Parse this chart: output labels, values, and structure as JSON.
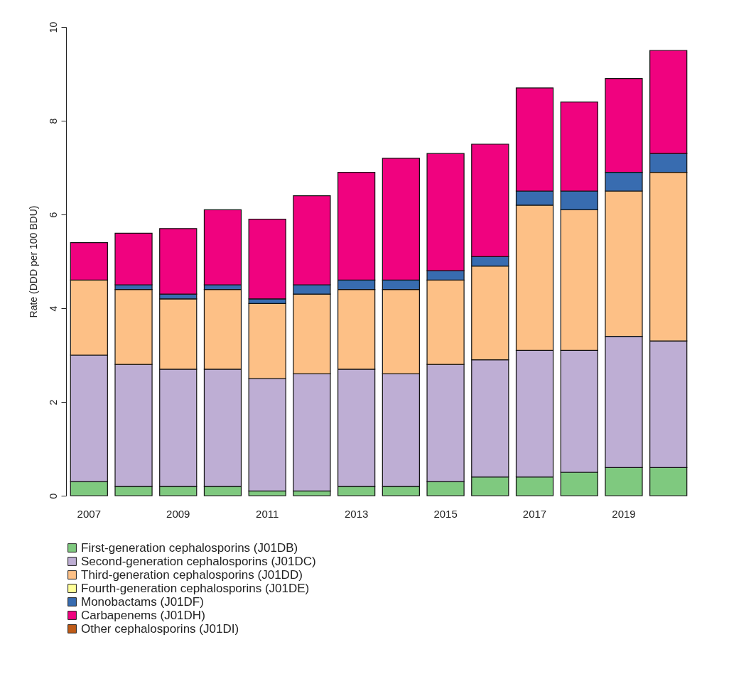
{
  "chart_data": {
    "type": "bar",
    "stacked": true,
    "ylabel": "Rate (DDD per 100 BDU)",
    "categories": [
      "2007",
      null,
      "2009",
      null,
      "2011",
      null,
      "2013",
      null,
      "2015",
      null,
      "2017",
      null,
      "2019",
      null
    ],
    "ylim": [
      0,
      10
    ],
    "yticks": [
      0,
      2,
      4,
      6,
      8,
      10
    ],
    "grid": false,
    "legend": "bottom",
    "series": [
      {
        "name": "First-generation cephalosporins (J01DB)",
        "color": "#7fc97f",
        "values": [
          0.3,
          0.2,
          0.2,
          0.2,
          0.1,
          0.1,
          0.2,
          0.2,
          0.3,
          0.4,
          0.4,
          0.5,
          0.6,
          0.6
        ]
      },
      {
        "name": "Second-generation cephalosporins (J01DC)",
        "color": "#beaed4",
        "values": [
          2.7,
          2.6,
          2.5,
          2.5,
          2.4,
          2.5,
          2.5,
          2.4,
          2.5,
          2.5,
          2.7,
          2.6,
          2.8,
          2.7
        ]
      },
      {
        "name": "Third-generation cephalosporins (J01DD)",
        "color": "#fdc086",
        "values": [
          1.6,
          1.6,
          1.5,
          1.7,
          1.6,
          1.7,
          1.7,
          1.8,
          1.8,
          2.0,
          3.1,
          3.0,
          3.1,
          3.6
        ]
      },
      {
        "name": "Fourth-generation cephalosporins (J01DE)",
        "color": "#ffff99",
        "values": [
          null,
          null,
          null,
          null,
          null,
          null,
          null,
          null,
          null,
          null,
          null,
          null,
          null,
          null
        ]
      },
      {
        "name": "Monobactams (J01DF)",
        "color": "#386cb0",
        "values": [
          0,
          0.1,
          0.1,
          0.1,
          0.1,
          0.2,
          0.2,
          0.2,
          0.2,
          0.2,
          0.3,
          0.4,
          0.4,
          0.4
        ]
      },
      {
        "name": "Carbapenems (J01DH)",
        "color": "#f0027f",
        "values": [
          0.8,
          1.1,
          1.4,
          1.6,
          1.7,
          1.9,
          2.3,
          2.6,
          2.5,
          2.4,
          2.2,
          1.9,
          2.0,
          2.2
        ]
      },
      {
        "name": "Other cephalosporins (J01DI)",
        "color": "#bf5b17",
        "values": [
          null,
          null,
          null,
          null,
          null,
          null,
          null,
          null,
          null,
          null,
          null,
          null,
          null,
          null
        ]
      }
    ]
  }
}
